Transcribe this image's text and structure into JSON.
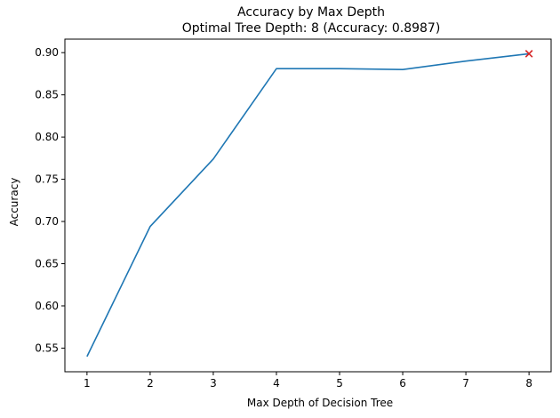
{
  "chart_data": {
    "type": "line",
    "title": "Accuracy by Max Depth",
    "subtitle": "Optimal Tree Depth: 8 (Accuracy: 0.8987)",
    "xlabel": "Max Depth of Decision Tree",
    "ylabel": "Accuracy",
    "x": [
      1,
      2,
      3,
      4,
      5,
      6,
      7,
      8
    ],
    "series": [
      {
        "values": [
          0.54,
          0.694,
          0.774,
          0.881,
          0.881,
          0.88,
          0.89,
          0.8987
        ],
        "color": "#1f77b4"
      }
    ],
    "marker": {
      "x": 8,
      "y": 0.8987,
      "symbol": "x",
      "color": "#d62728"
    },
    "xticks": [
      "1",
      "2",
      "3",
      "4",
      "5",
      "6",
      "7",
      "8"
    ],
    "yticks": [
      "0.55",
      "0.60",
      "0.65",
      "0.70",
      "0.75",
      "0.80",
      "0.85",
      "0.90"
    ],
    "xlim": [
      0.65,
      8.35
    ],
    "ylim": [
      0.522,
      0.916
    ],
    "grid": false,
    "legend": "none"
  }
}
